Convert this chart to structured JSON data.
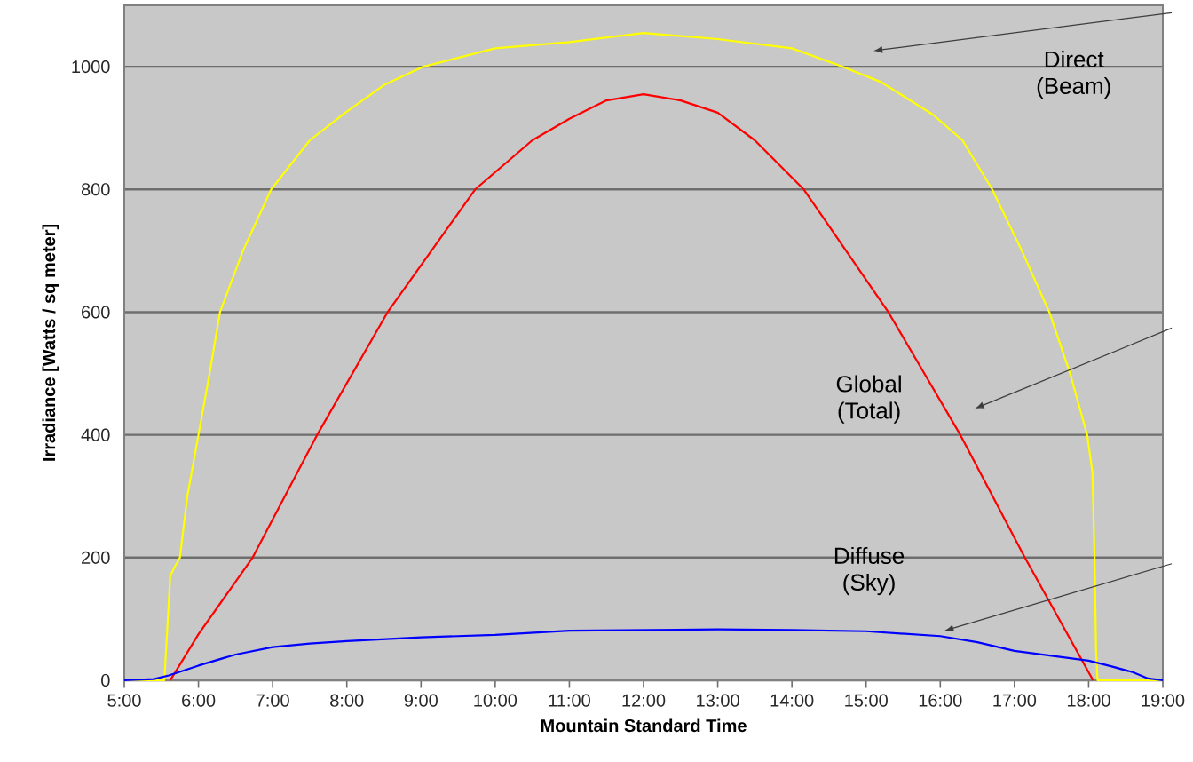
{
  "chart_data": {
    "type": "line",
    "xlabel": "Mountain Standard Time",
    "ylabel": "Irradiance [Watts / sq meter]",
    "xlim": [
      5,
      19
    ],
    "ylim": [
      0,
      1100
    ],
    "xticks": [
      {
        "value": 5,
        "label": "5:00"
      },
      {
        "value": 6,
        "label": "6:00"
      },
      {
        "value": 7,
        "label": "7:00"
      },
      {
        "value": 8,
        "label": "8:00"
      },
      {
        "value": 9,
        "label": "9:00"
      },
      {
        "value": 10,
        "label": "10:00"
      },
      {
        "value": 11,
        "label": "11:00"
      },
      {
        "value": 12,
        "label": "12:00"
      },
      {
        "value": 13,
        "label": "13:00"
      },
      {
        "value": 14,
        "label": "14:00"
      },
      {
        "value": 15,
        "label": "15:00"
      },
      {
        "value": 16,
        "label": "16:00"
      },
      {
        "value": 17,
        "label": "17:00"
      },
      {
        "value": 18,
        "label": "18:00"
      },
      {
        "value": 19,
        "label": "19:00"
      }
    ],
    "yticks": [
      0,
      200,
      400,
      600,
      800,
      1000
    ],
    "grid": "y",
    "marker": "none",
    "line_style": "solid",
    "series": [
      {
        "color": "#ffff00",
        "x": [
          5,
          5.54,
          5.62,
          5.68,
          5.75,
          5.85,
          6.0,
          6.15,
          6.29,
          6.6,
          6.98,
          7.5,
          7.98,
          8.5,
          9.03,
          10,
          11,
          12,
          13,
          14,
          14.68,
          15.2,
          15.9,
          16.3,
          16.7,
          17.1,
          17.47,
          17.75,
          17.98,
          18.05,
          18.08,
          18.1,
          18.12,
          19
        ],
        "values": [
          0,
          0,
          170,
          185,
          200,
          300,
          400,
          500,
          600,
          700,
          800,
          880,
          925,
          970,
          1000,
          1030,
          1040,
          1055,
          1045,
          1030,
          1000,
          975,
          922,
          880,
          800,
          700,
          600,
          500,
          400,
          340,
          200,
          50,
          0,
          0
        ]
      },
      {
        "color": "#ff0000",
        "x": [
          5.62,
          6,
          6.73,
          7.6,
          8.55,
          9.73,
          10.5,
          11,
          11.5,
          12,
          12.5,
          13,
          13.5,
          14.16,
          15.3,
          16.27,
          17.14,
          18.06
        ],
        "values": [
          0,
          75,
          200,
          400,
          600,
          800,
          880,
          915,
          945,
          955,
          945,
          925,
          880,
          800,
          600,
          400,
          200,
          0
        ]
      },
      {
        "color": "#0000ff",
        "x": [
          5,
          5.4,
          5.6,
          6,
          6.5,
          7,
          7.5,
          8,
          9,
          10,
          11,
          12,
          13,
          14,
          15,
          16,
          16.5,
          17,
          17.5,
          18,
          18.3,
          18.6,
          18.8,
          19
        ],
        "values": [
          0,
          2,
          8,
          24,
          42,
          54,
          60,
          64,
          70,
          74,
          81,
          82,
          83,
          82,
          80,
          72,
          62,
          48,
          40,
          32,
          23,
          13,
          3,
          0
        ]
      }
    ],
    "annotations": [
      "Direct (Beam)",
      "Global (Total)",
      "Diffuse (Sky)"
    ]
  }
}
